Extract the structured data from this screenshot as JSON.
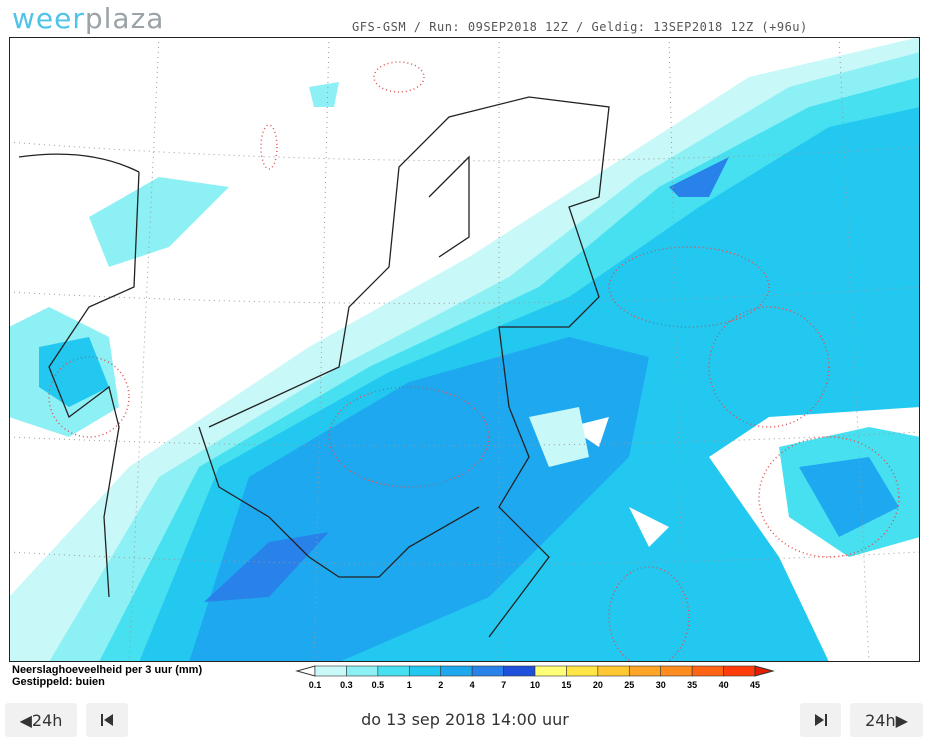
{
  "header": {
    "logo_a": "weer",
    "logo_b": "plaza",
    "run_info": "GFS-GSM / Run: 09SEP2018 12Z / Geldig: 13SEP2018 12Z (+96u)"
  },
  "legend": {
    "title": "Neerslaghoeveelheid per 3 uur (mm)",
    "subtitle": "Gestippeld: buien",
    "labels": [
      "0.1",
      "0.3",
      "0.5",
      "1",
      "2",
      "4",
      "7",
      "10",
      "15",
      "20",
      "25",
      "30",
      "35",
      "40",
      "45"
    ],
    "colors": [
      "#ffffff",
      "#c8f8f8",
      "#8cf0f5",
      "#46e0f0",
      "#22c8f0",
      "#1ea8f0",
      "#2882ea",
      "#1e50dc",
      "#ffff78",
      "#ffe646",
      "#ffc832",
      "#ffa528",
      "#ff8c1e",
      "#ff6414",
      "#ff3c0a",
      "#e61e00"
    ]
  },
  "nav": {
    "prev": "24h",
    "next": "24h",
    "date": "do 13 sep 2018 14:00 uur"
  }
}
